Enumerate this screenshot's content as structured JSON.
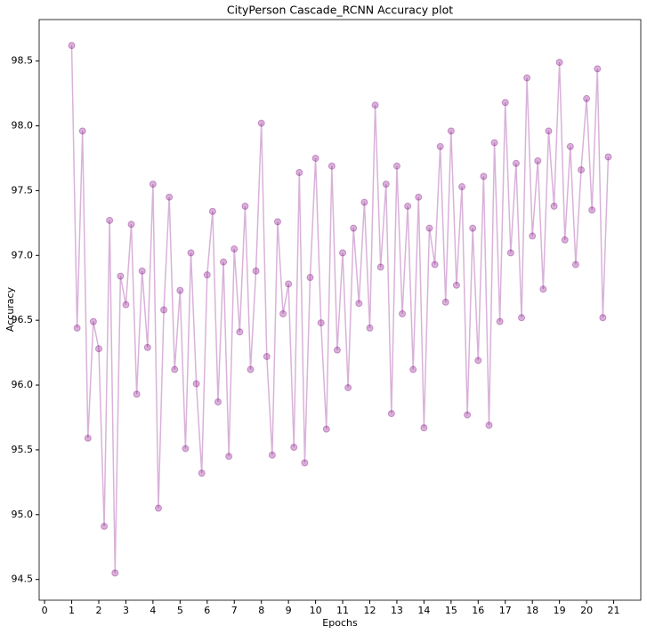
{
  "chart_data": {
    "type": "line",
    "title": "CityPerson Cascade_RCNN Accuracy plot",
    "x_label": "Epochs",
    "y_label": "Accuracy",
    "x": [
      1.0,
      1.2,
      1.4,
      1.6,
      1.8,
      2.0,
      2.2,
      2.4,
      2.6,
      2.8,
      3.0,
      3.2,
      3.4,
      3.6,
      3.8,
      4.0,
      4.2,
      4.4,
      4.6,
      4.8,
      5.0,
      5.2,
      5.4,
      5.6,
      5.8,
      6.0,
      6.2,
      6.4,
      6.6,
      6.8,
      7.0,
      7.2,
      7.4,
      7.6,
      7.8,
      8.0,
      8.2,
      8.4,
      8.6,
      8.8,
      9.0,
      9.2,
      9.4,
      9.6,
      9.8,
      10.0,
      10.2,
      10.4,
      10.6,
      10.8,
      11.0,
      11.2,
      11.4,
      11.6,
      11.8,
      12.0,
      12.2,
      12.4,
      12.6,
      12.8,
      13.0,
      13.2,
      13.4,
      13.6,
      13.8,
      14.0,
      14.2,
      14.4,
      14.6,
      14.8,
      15.0,
      15.2,
      15.4,
      15.6,
      15.8,
      16.0,
      16.2,
      16.4,
      16.6,
      16.8,
      17.0,
      17.2,
      17.4,
      17.6,
      17.8,
      18.0,
      18.2,
      18.4,
      18.6,
      18.8,
      19.0,
      19.2,
      19.4,
      19.6,
      19.8,
      20.0,
      20.2,
      20.4,
      20.6,
      20.8
    ],
    "series": [
      {
        "name": "Accuracy",
        "color": "#800080",
        "values": [
          98.62,
          96.44,
          97.96,
          95.59,
          96.49,
          96.28,
          94.91,
          97.27,
          94.55,
          96.84,
          96.62,
          97.24,
          95.93,
          96.88,
          96.29,
          97.55,
          95.05,
          96.58,
          97.45,
          96.12,
          96.73,
          95.51,
          97.02,
          96.01,
          95.32,
          96.85,
          97.34,
          95.87,
          96.95,
          95.45,
          97.05,
          96.41,
          97.38,
          96.12,
          96.88,
          98.02,
          96.22,
          95.46,
          97.26,
          96.55,
          96.78,
          95.52,
          97.64,
          95.4,
          96.83,
          97.75,
          96.48,
          95.66,
          97.69,
          96.27,
          97.02,
          95.98,
          97.21,
          96.63,
          97.41,
          96.44,
          98.16,
          96.91,
          97.55,
          95.78,
          97.69,
          96.55,
          97.38,
          96.12,
          97.45,
          95.67,
          97.21,
          96.93,
          97.84,
          96.64,
          97.96,
          96.77,
          97.53,
          95.77,
          97.21,
          96.19,
          97.61,
          95.69,
          97.87,
          96.49,
          98.18,
          97.02,
          97.71,
          96.52,
          98.37,
          97.15,
          97.73,
          96.74,
          97.96,
          97.38,
          98.49,
          97.12,
          97.84,
          96.93,
          97.66,
          98.21,
          97.35,
          98.44,
          96.52,
          97.76
        ]
      }
    ],
    "xlim": [
      -0.2,
      22
    ],
    "xticks": [
      0,
      1,
      2,
      3,
      4,
      5,
      6,
      7,
      8,
      9,
      10,
      11,
      12,
      13,
      14,
      15,
      16,
      17,
      18,
      19,
      20,
      21
    ],
    "ylim": [
      94.34,
      98.82
    ],
    "yticks": [
      94.5,
      {
        "value": 95,
        "label": "95.0"
      },
      95.5,
      {
        "value": 96,
        "label": "96.0"
      },
      96.5,
      {
        "value": 97,
        "label": "97.0"
      },
      97.5,
      {
        "value": 98,
        "label": "98.0"
      },
      98.5
    ],
    "grid": false
  }
}
